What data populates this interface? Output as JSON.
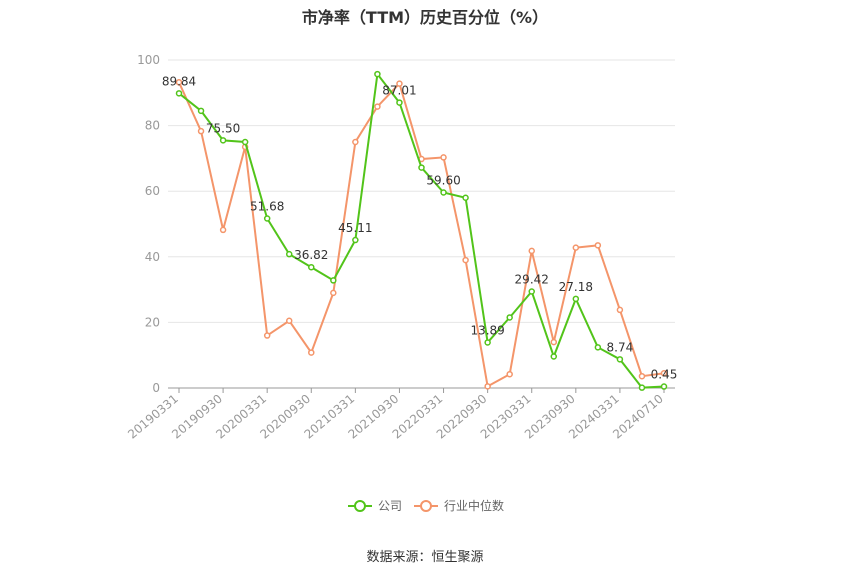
{
  "chart_data": {
    "type": "line",
    "title": "市净率（TTM）历史百分位（%）",
    "ylim": [
      0,
      100
    ],
    "yticks": [
      0,
      20,
      40,
      60,
      80,
      100
    ],
    "grid": true,
    "legend_position": "bottom",
    "x_tick_labels": [
      "20190331",
      "20190930",
      "20200331",
      "20200930",
      "20210331",
      "20210930",
      "20220331",
      "20220930",
      "20230331",
      "20230930",
      "20240331",
      "20240710"
    ],
    "series": [
      {
        "name": "公司",
        "color": "#52c41a",
        "values": [
          89.84,
          84.5,
          75.5,
          75.0,
          51.68,
          40.8,
          36.82,
          32.8,
          45.11,
          95.7,
          87.01,
          67.2,
          59.6,
          58.0,
          13.89,
          21.5,
          29.42,
          9.6,
          27.18,
          12.4,
          8.74,
          0.1,
          0.45
        ]
      },
      {
        "name": "行业中位数",
        "color": "#f4956a",
        "values": [
          93.2,
          78.3,
          48.2,
          73.5,
          16.0,
          20.5,
          10.8,
          29.0,
          75.0,
          85.8,
          92.8,
          69.8,
          70.3,
          39.0,
          0.5,
          4.2,
          41.8,
          14.0,
          42.8,
          43.5,
          23.8,
          3.6,
          4.5
        ]
      }
    ],
    "data_labels": [
      {
        "index": 0,
        "text": "89.84"
      },
      {
        "index": 2,
        "text": "75.50"
      },
      {
        "index": 4,
        "text": "51.68"
      },
      {
        "index": 6,
        "text": "36.82"
      },
      {
        "index": 8,
        "text": "45.11"
      },
      {
        "index": 10,
        "text": "87.01"
      },
      {
        "index": 12,
        "text": "59.60"
      },
      {
        "index": 14,
        "text": "13.89"
      },
      {
        "index": 16,
        "text": "29.42"
      },
      {
        "index": 18,
        "text": "27.18"
      },
      {
        "index": 20,
        "text": "8.74"
      },
      {
        "index": 22,
        "text": "0.45"
      }
    ]
  },
  "legend": {
    "company_label": "公司",
    "industry_label": "行业中位数"
  },
  "footer": {
    "source": "数据来源：恒生聚源"
  }
}
